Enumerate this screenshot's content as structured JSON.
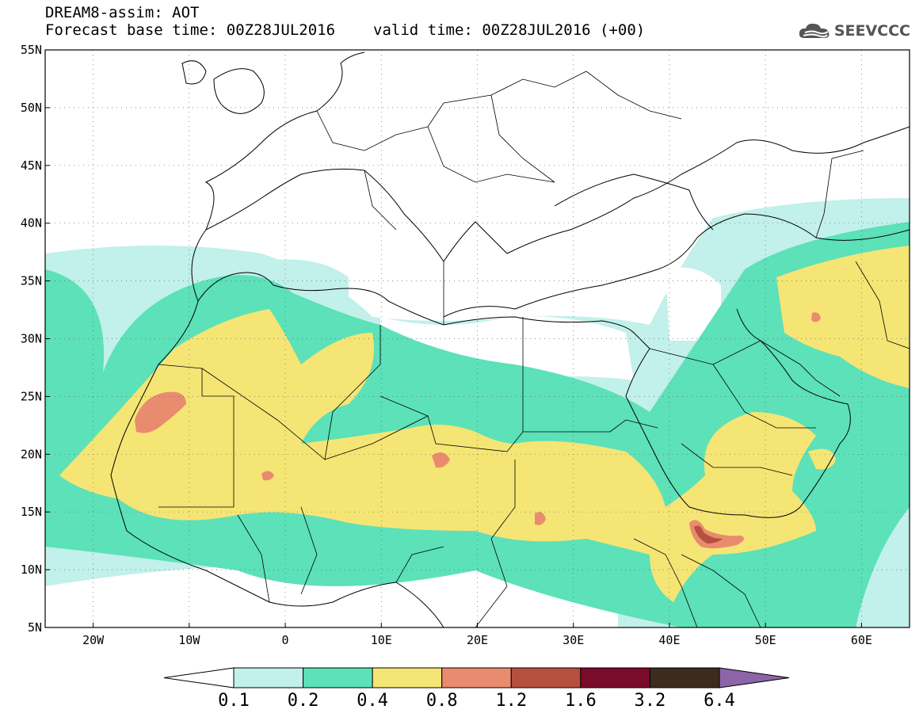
{
  "header": {
    "title": "DREAM8-assim: AOT",
    "base_time": "Forecast base time: 00Z28JUL2016",
    "valid_time": "valid time: 00Z28JUL2016 (+00)",
    "logo_text": "SEEVCCC",
    "logo_icon": "cloud-icon"
  },
  "map": {
    "extent": {
      "lon": [
        -25,
        65
      ],
      "lat": [
        5,
        55
      ]
    },
    "lat_ticks": [
      "55N",
      "50N",
      "45N",
      "40N",
      "35N",
      "30N",
      "25N",
      "20N",
      "15N",
      "10N",
      "5N"
    ],
    "lon_ticks": [
      "20W",
      "10W",
      "0",
      "10E",
      "20E",
      "30E",
      "40E",
      "50E",
      "60E"
    ],
    "grid": "dotted",
    "background": "#ffffff",
    "border_color": "#000000"
  },
  "colorbar": {
    "levels": [
      "0.1",
      "0.2",
      "0.4",
      "0.8",
      "1.2",
      "1.6",
      "3.2",
      "6.4"
    ],
    "colors": [
      "#ffffff",
      "#c2f0ea",
      "#5ce1b9",
      "#f5e574",
      "#e98b6e",
      "#b5503f",
      "#7b0b2b",
      "#3d2b1e",
      "#8c64a8"
    ]
  }
}
